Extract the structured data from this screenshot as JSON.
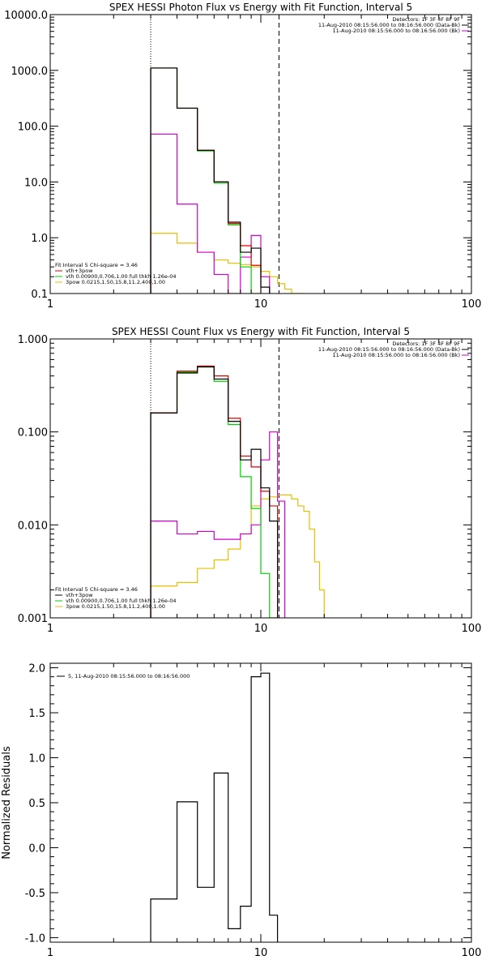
{
  "colors": {
    "black": "#000000",
    "red": "#e00000",
    "green": "#00d000",
    "magenta": "#d000d0",
    "yellow": "#e6c000",
    "background": "#ffffff"
  },
  "chart_data": [
    {
      "type": "line",
      "title": "SPEX HESSI Photon Flux vs Energy with Fit Function, Interval 5",
      "xscale": "log",
      "yscale": "log",
      "xlim": [
        1,
        100
      ],
      "ylim": [
        0.1,
        10000
      ],
      "xticks": [
        "1",
        "10",
        "100"
      ],
      "yticks": [
        "0.1",
        "1.0",
        "10.0",
        "100.0",
        "1000.0",
        "10000.0"
      ],
      "ylabel": "",
      "markers": {
        "dotted_x": 3,
        "dashed_x": 12.2
      },
      "info_topright": [
        "Detectors: 1F 3F 4F 8F 9F",
        "11-Aug-2010 08:15:56.000 to 08:16:56.000 (Data-Bk)",
        "11-Aug-2010 08:15:56.000 to 08:16:56.000 (Bk)"
      ],
      "info_topright_colors": [
        "",
        "black",
        "magenta"
      ],
      "legend_lines": [
        "Fit Interval  5   Chi-square = 3.46",
        "vth+3pow",
        "vth 0.00900,0.706,1.00   full thkh 1.26e-04",
        "3pow 0.0215,1.50,15.8,11.2,400,1.00"
      ],
      "legend_colors": [
        "",
        "red",
        "green",
        "yellow"
      ],
      "edges": [
        3,
        4,
        5,
        6,
        7,
        8,
        9,
        10,
        11,
        12,
        13,
        14,
        15,
        16
      ],
      "series": [
        {
          "name": "Data-Bk",
          "color": "black",
          "values": [
            1100,
            210,
            37,
            10,
            1.9,
            0.55,
            0.65,
            0.13,
            null,
            null,
            null,
            null,
            null
          ]
        },
        {
          "name": "vth+3pow",
          "color": "red",
          "values": [
            1100,
            210,
            37,
            10,
            1.8,
            0.72,
            0.32,
            null,
            null,
            null,
            null,
            null,
            null
          ]
        },
        {
          "name": "vth",
          "color": "green",
          "values": [
            1100,
            210,
            36,
            9.5,
            1.7,
            0.3,
            0.1,
            null,
            null,
            null,
            null,
            null,
            null
          ]
        },
        {
          "name": "Bk",
          "color": "magenta",
          "values": [
            72,
            4,
            0.55,
            0.22,
            0.1,
            0.45,
            1.1,
            0.2,
            null,
            null,
            null,
            null,
            null
          ]
        },
        {
          "name": "3pow",
          "color": "yellow",
          "values": [
            1.2,
            0.8,
            0.55,
            0.4,
            0.35,
            0.33,
            0.3,
            0.25,
            0.2,
            0.15,
            0.12,
            0.1,
            0.1
          ]
        }
      ]
    },
    {
      "type": "line",
      "title": "SPEX HESSI Count Flux vs Energy with Fit Function, Interval 5",
      "xscale": "log",
      "yscale": "log",
      "xlim": [
        1,
        100
      ],
      "ylim": [
        0.001,
        1
      ],
      "xticks": [
        "1",
        "10",
        "100"
      ],
      "yticks": [
        "0.001",
        "0.010",
        "0.100",
        "1.000"
      ],
      "ylabel": "",
      "markers": {
        "dotted_x": 3,
        "dashed_x": 12.2
      },
      "info_topright": [
        "Detectors: 1F 3F 4F 8F 9F",
        "11-Aug-2010 08:15:56.000 to 08:16:56.000 (Data-Bk)",
        "11-Aug-2010 08:15:56.000 to 08:16:56.000 (Bk)"
      ],
      "info_topright_colors": [
        "",
        "black",
        "magenta"
      ],
      "legend_lines": [
        "Fit Interval  5   Chi-square = 3.46",
        "vth+3pow",
        "vth 0.00900,0.706,1.00   full thkh 1.26e-04",
        "3pow 0.0215,1.50,15.8,11.2,400,1.00"
      ],
      "legend_colors": [
        "",
        "black",
        "green",
        "yellow"
      ],
      "edges": [
        3,
        4,
        5,
        6,
        7,
        8,
        9,
        10,
        11,
        12,
        13,
        14,
        15,
        16,
        17,
        18,
        19,
        20
      ],
      "series": [
        {
          "name": "Data-Bk",
          "color": "black",
          "values": [
            0.16,
            0.43,
            0.5,
            0.37,
            0.13,
            0.05,
            0.065,
            0.025,
            0.011,
            null,
            null,
            null,
            null,
            null,
            null,
            null,
            null
          ]
        },
        {
          "name": "vth+3pow",
          "color": "red",
          "values": [
            0.16,
            0.45,
            0.51,
            0.4,
            0.14,
            0.055,
            0.042,
            0.023,
            0.016,
            null,
            null,
            null,
            null,
            null,
            null,
            null,
            null
          ]
        },
        {
          "name": "vth",
          "color": "green",
          "values": [
            0.16,
            0.44,
            0.5,
            0.35,
            0.12,
            0.033,
            0.015,
            0.003,
            0.001,
            null,
            null,
            null,
            null,
            null,
            null,
            null,
            null
          ]
        },
        {
          "name": "Bk",
          "color": "magenta",
          "values": [
            0.011,
            0.008,
            0.0085,
            0.007,
            0.007,
            0.008,
            0.01,
            0.05,
            0.1,
            0.018,
            null,
            null,
            null,
            null,
            null,
            null,
            null
          ]
        },
        {
          "name": "3pow",
          "color": "yellow",
          "values": [
            0.0022,
            0.0024,
            0.0034,
            0.0042,
            0.0055,
            0.008,
            0.016,
            0.019,
            0.02,
            0.021,
            0.021,
            0.019,
            0.016,
            0.014,
            0.009,
            0.004,
            0.002
          ]
        }
      ]
    },
    {
      "type": "line",
      "title": "",
      "xscale": "log",
      "yscale": "linear",
      "xlim": [
        1,
        100
      ],
      "ylim": [
        -1.05,
        2.05
      ],
      "xticks": [
        "1",
        "10",
        "100"
      ],
      "yticks": [
        "-1.0",
        "-0.5",
        "0.0",
        "0.5",
        "1.0",
        "1.5",
        "2.0"
      ],
      "ylabel": "Normalized Residuals",
      "legend_lines": [
        "5, 11-Aug-2010 08:15:56.000 to 08:16:56.000"
      ],
      "edges": [
        3,
        4,
        5,
        6,
        7,
        8,
        9,
        10,
        11,
        12
      ],
      "series": [
        {
          "name": "5, 11-Aug-2010 08:15:56.000 to 08:16:56.000",
          "color": "black",
          "values": [
            -0.57,
            0.51,
            -0.44,
            0.83,
            -0.9,
            -0.65,
            1.9,
            1.94,
            -0.75
          ]
        }
      ]
    }
  ]
}
